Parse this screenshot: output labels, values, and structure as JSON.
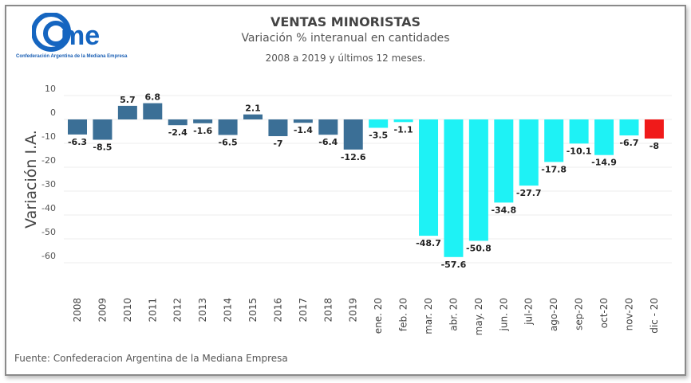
{
  "logo": {
    "text": "cme",
    "subtitle": "Confederación Argentina de la Mediana Empresa"
  },
  "source": "Fuente: Confederacion Argentina de la Mediana Empresa",
  "colors": {
    "annual": "#3b6f96",
    "monthly": "#1ef2f5",
    "latest": "#f01a1a"
  },
  "chart_data": {
    "type": "bar",
    "title": "VENTAS MINORISTAS",
    "subtitle": "Variación % interanual en cantidades",
    "subtitle2": "2008 a 2019 y últimos 12 meses.",
    "ylabel": "Variación I.A.",
    "xlabel": "",
    "ylim": [
      -60,
      10
    ],
    "yticks": [
      10,
      0,
      -10,
      -20,
      -30,
      -40,
      -50,
      -60
    ],
    "grid": true,
    "categories": [
      "2008",
      "2009",
      "2010",
      "2011",
      "2012",
      "2013",
      "2014",
      "2015",
      "2016",
      "2017",
      "2018",
      "2019",
      "ene. 20",
      "feb. 20",
      "mar. 20",
      "abr. 20",
      "may. 20",
      "jun. 20",
      "jul-20",
      "ago-20",
      "sep-20",
      "oct-20",
      "nov-20",
      "dic - 20"
    ],
    "values": [
      -6.3,
      -8.5,
      5.7,
      6.8,
      -2.4,
      -1.6,
      -6.5,
      2.1,
      -7,
      -1.4,
      -6.4,
      -12.6,
      -3.5,
      -1.1,
      -48.7,
      -57.6,
      -50.8,
      -34.8,
      -27.7,
      -17.8,
      -10.1,
      -14.9,
      -6.7,
      -8
    ],
    "color_groups": [
      "annual",
      "annual",
      "annual",
      "annual",
      "annual",
      "annual",
      "annual",
      "annual",
      "annual",
      "annual",
      "annual",
      "annual",
      "monthly",
      "monthly",
      "monthly",
      "monthly",
      "monthly",
      "monthly",
      "monthly",
      "monthly",
      "monthly",
      "monthly",
      "monthly",
      "latest"
    ]
  }
}
